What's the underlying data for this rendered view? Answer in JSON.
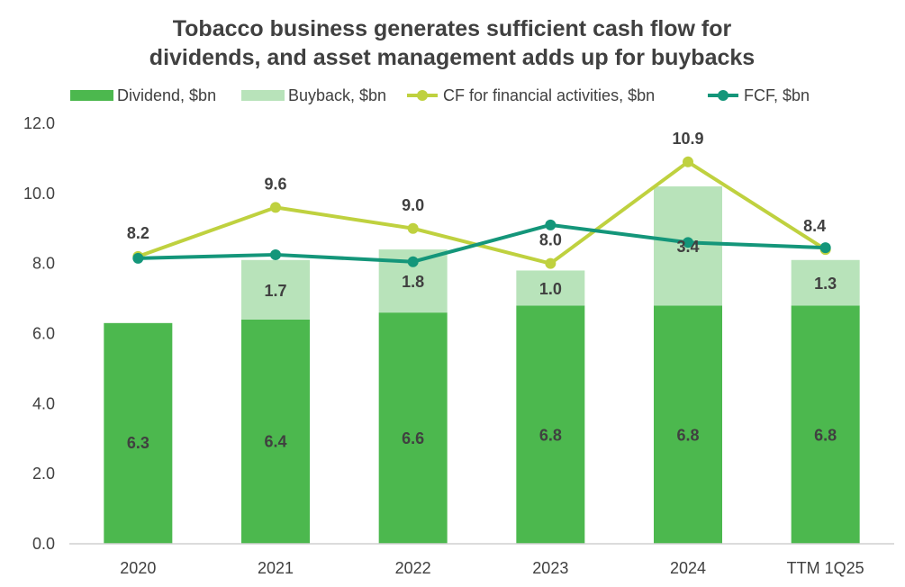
{
  "chart_data": {
    "type": "bar",
    "title_lines": [
      "Tobacco business generates sufficient cash flow for",
      "dividends, and asset management adds up for buybacks"
    ],
    "categories": [
      "2020",
      "2021",
      "2022",
      "2023",
      "2024",
      "TTM 1Q25"
    ],
    "ylim": [
      0,
      12
    ],
    "yticks": [
      "0.0",
      "2.0",
      "4.0",
      "6.0",
      "8.0",
      "10.0",
      "12.0"
    ],
    "ytick_values": [
      0,
      2,
      4,
      6,
      8,
      10,
      12
    ],
    "legend_position": "top",
    "grid": false,
    "series": [
      {
        "name": "Dividend, $bn",
        "kind": "bar-stacked",
        "color": "#4CB84E",
        "values": [
          6.3,
          6.4,
          6.6,
          6.8,
          6.8,
          6.8
        ],
        "labels": [
          "6.3",
          "6.4",
          "6.6",
          "6.8",
          "6.8",
          "6.8"
        ]
      },
      {
        "name": "Buyback, $bn",
        "kind": "bar-stacked",
        "color": "#B8E3BA",
        "values": [
          0,
          1.7,
          1.8,
          1.0,
          3.4,
          1.3
        ],
        "labels": [
          "",
          "1.7",
          "1.8",
          "1.0",
          "3.4",
          "1.3"
        ]
      },
      {
        "name": "CF for financial activities, $bn",
        "kind": "line",
        "color": "#BFD13F",
        "values": [
          8.2,
          9.6,
          9.0,
          8.0,
          10.9,
          8.4
        ],
        "labels": [
          "8.2",
          "9.6",
          "9.0",
          "8.0",
          "10.9",
          "8.4"
        ]
      },
      {
        "name": "FCF, $bn",
        "kind": "line",
        "color": "#14967A",
        "values": [
          8.15,
          8.25,
          8.05,
          9.1,
          8.6,
          8.45
        ],
        "labels": [
          "",
          "",
          "",
          "",
          "",
          ""
        ]
      }
    ]
  }
}
